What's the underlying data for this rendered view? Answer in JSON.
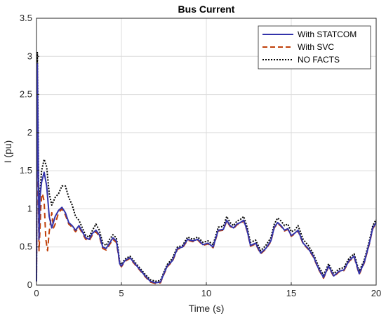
{
  "chart_data": {
    "type": "line",
    "title": "Bus Current",
    "xlabel": "Time (s)",
    "ylabel": "I (pu)",
    "xlim": [
      0,
      20
    ],
    "ylim": [
      0,
      3.5
    ],
    "xticks": [
      "0",
      "5",
      "10",
      "15",
      "20"
    ],
    "yticks": [
      "0",
      "0.5",
      "1",
      "1.5",
      "2",
      "2.5",
      "3",
      "3.5"
    ],
    "grid": true,
    "legend_position": "top-right",
    "series": [
      {
        "name": "With STATCOM",
        "color": "#3333aa",
        "style": "solid",
        "x": [
          0,
          0.05,
          0.1,
          0.15,
          0.2,
          0.3,
          0.45,
          0.6,
          0.75,
          0.9,
          1.1,
          1.3,
          1.5,
          1.7,
          1.9,
          2.1,
          2.3,
          2.5,
          2.7,
          2.9,
          3.1,
          3.3,
          3.5,
          3.7,
          3.9,
          4.1,
          4.3,
          4.5,
          4.7,
          4.8,
          4.9,
          5.0,
          5.2,
          5.5,
          5.8,
          6.1,
          6.4,
          6.7,
          7.0,
          7.3,
          7.5,
          7.7,
          8.0,
          8.3,
          8.6,
          8.9,
          9.2,
          9.5,
          9.8,
          10.1,
          10.4,
          10.7,
          11.0,
          11.2,
          11.4,
          11.6,
          11.8,
          12.0,
          12.2,
          12.4,
          12.6,
          12.9,
          13.2,
          13.5,
          13.8,
          14.0,
          14.2,
          14.4,
          14.6,
          14.8,
          15.0,
          15.2,
          15.4,
          15.7,
          16.0,
          16.3,
          16.6,
          16.9,
          17.2,
          17.5,
          17.8,
          18.1,
          18.4,
          18.7,
          19.0,
          19.3,
          19.6,
          19.8,
          20.0
        ],
        "values": [
          0.05,
          2.9,
          1.7,
          0.6,
          1.15,
          1.35,
          1.48,
          1.3,
          0.9,
          0.75,
          0.9,
          0.98,
          1.02,
          0.95,
          0.82,
          0.78,
          0.72,
          0.78,
          0.7,
          0.62,
          0.6,
          0.68,
          0.72,
          0.66,
          0.5,
          0.48,
          0.55,
          0.62,
          0.58,
          0.45,
          0.28,
          0.25,
          0.32,
          0.36,
          0.28,
          0.2,
          0.12,
          0.05,
          0.03,
          0.04,
          0.15,
          0.25,
          0.32,
          0.48,
          0.5,
          0.6,
          0.58,
          0.6,
          0.53,
          0.55,
          0.5,
          0.72,
          0.73,
          0.85,
          0.78,
          0.75,
          0.8,
          0.82,
          0.85,
          0.72,
          0.52,
          0.55,
          0.42,
          0.48,
          0.58,
          0.76,
          0.82,
          0.78,
          0.72,
          0.74,
          0.65,
          0.68,
          0.72,
          0.55,
          0.48,
          0.38,
          0.22,
          0.1,
          0.25,
          0.12,
          0.18,
          0.2,
          0.32,
          0.38,
          0.15,
          0.3,
          0.55,
          0.75,
          0.82
        ]
      },
      {
        "name": "With SVC",
        "color": "#c0400a",
        "style": "dashed",
        "x": [
          0,
          0.05,
          0.1,
          0.15,
          0.2,
          0.25,
          0.3,
          0.35,
          0.45,
          0.55,
          0.65,
          0.75,
          0.9,
          1.0,
          1.1,
          1.3,
          1.5,
          1.7,
          1.9,
          2.1,
          2.3,
          2.5,
          2.7,
          2.9,
          3.1,
          3.3,
          3.5,
          3.7,
          3.9,
          4.1,
          4.3,
          4.5,
          4.7,
          4.8,
          4.9,
          5.0,
          5.2,
          5.5,
          5.8,
          6.1,
          6.4,
          6.7,
          7.0,
          7.3,
          7.5,
          7.7,
          8.0,
          8.3,
          8.6,
          8.9,
          9.2,
          9.5,
          9.8,
          10.1,
          10.4,
          10.7,
          11.0,
          11.2,
          11.4,
          11.6,
          11.8,
          12.0,
          12.2,
          12.4,
          12.6,
          12.9,
          13.2,
          13.5,
          13.8,
          14.0,
          14.2,
          14.4,
          14.6,
          14.8,
          15.0,
          15.2,
          15.4,
          15.7,
          16.0,
          16.3,
          16.6,
          16.9,
          17.2,
          17.5,
          17.8,
          18.1,
          18.4,
          18.7,
          19.0,
          19.3,
          19.6,
          19.8,
          20.0
        ],
        "values": [
          0.05,
          2.8,
          1.2,
          0.45,
          0.7,
          1.0,
          1.15,
          1.2,
          1.1,
          0.6,
          0.45,
          0.7,
          0.95,
          0.75,
          0.8,
          0.95,
          1.0,
          0.92,
          0.8,
          0.76,
          0.7,
          0.76,
          0.68,
          0.6,
          0.58,
          0.66,
          0.7,
          0.64,
          0.48,
          0.46,
          0.53,
          0.6,
          0.56,
          0.43,
          0.27,
          0.24,
          0.31,
          0.35,
          0.27,
          0.19,
          0.11,
          0.04,
          0.02,
          0.03,
          0.14,
          0.24,
          0.31,
          0.47,
          0.49,
          0.59,
          0.57,
          0.59,
          0.52,
          0.54,
          0.49,
          0.71,
          0.72,
          0.84,
          0.77,
          0.74,
          0.79,
          0.81,
          0.84,
          0.71,
          0.51,
          0.54,
          0.41,
          0.47,
          0.57,
          0.75,
          0.81,
          0.77,
          0.71,
          0.73,
          0.64,
          0.67,
          0.71,
          0.54,
          0.47,
          0.37,
          0.21,
          0.09,
          0.24,
          0.11,
          0.17,
          0.19,
          0.31,
          0.37,
          0.14,
          0.29,
          0.54,
          0.74,
          0.81
        ]
      },
      {
        "name": "NO FACTS",
        "color": "#000000",
        "style": "dotted",
        "x": [
          0,
          0.05,
          0.1,
          0.15,
          0.2,
          0.3,
          0.45,
          0.6,
          0.75,
          0.9,
          1.1,
          1.3,
          1.5,
          1.7,
          1.9,
          2.1,
          2.3,
          2.5,
          2.7,
          2.9,
          3.1,
          3.3,
          3.5,
          3.7,
          3.9,
          4.1,
          4.3,
          4.5,
          4.7,
          4.8,
          4.9,
          5.0,
          5.2,
          5.5,
          5.8,
          6.1,
          6.4,
          6.7,
          7.0,
          7.3,
          7.5,
          7.7,
          8.0,
          8.3,
          8.6,
          8.9,
          9.2,
          9.5,
          9.8,
          10.1,
          10.4,
          10.7,
          11.0,
          11.2,
          11.4,
          11.6,
          11.8,
          12.0,
          12.2,
          12.4,
          12.6,
          12.9,
          13.2,
          13.5,
          13.8,
          14.0,
          14.2,
          14.4,
          14.6,
          14.8,
          15.0,
          15.2,
          15.4,
          15.7,
          16.0,
          16.3,
          16.6,
          16.9,
          17.2,
          17.5,
          17.8,
          18.1,
          18.4,
          18.7,
          19.0,
          19.3,
          19.6,
          19.8,
          20.0
        ],
        "values": [
          0.05,
          3.05,
          1.9,
          0.8,
          1.2,
          1.5,
          1.65,
          1.55,
          1.2,
          1.05,
          1.15,
          1.2,
          1.3,
          1.3,
          1.15,
          1.05,
          0.9,
          0.85,
          0.75,
          0.65,
          0.63,
          0.72,
          0.8,
          0.72,
          0.55,
          0.52,
          0.6,
          0.66,
          0.62,
          0.48,
          0.3,
          0.27,
          0.34,
          0.38,
          0.3,
          0.22,
          0.14,
          0.07,
          0.05,
          0.06,
          0.17,
          0.27,
          0.35,
          0.5,
          0.52,
          0.63,
          0.6,
          0.63,
          0.56,
          0.58,
          0.53,
          0.76,
          0.77,
          0.9,
          0.82,
          0.78,
          0.84,
          0.86,
          0.9,
          0.76,
          0.56,
          0.59,
          0.45,
          0.52,
          0.62,
          0.8,
          0.88,
          0.84,
          0.78,
          0.8,
          0.7,
          0.72,
          0.78,
          0.6,
          0.52,
          0.41,
          0.25,
          0.13,
          0.28,
          0.15,
          0.21,
          0.23,
          0.35,
          0.41,
          0.18,
          0.33,
          0.58,
          0.78,
          0.86
        ]
      }
    ]
  }
}
